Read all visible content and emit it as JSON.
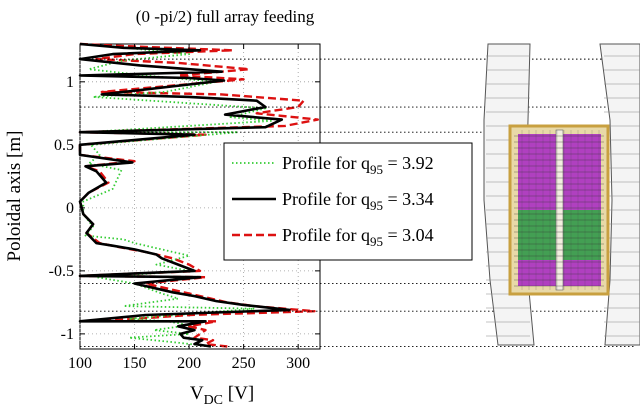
{
  "chart_data": {
    "type": "line",
    "title": "(0 -pi/2) full array feeding",
    "xlabel": "V",
    "xlabel_sub": "DC",
    "xlabel_unit": " [V]",
    "ylabel": "Poloidal axis [m]",
    "xlim": [
      100,
      320
    ],
    "ylim": [
      -1.12,
      1.3
    ],
    "xticks": [
      100,
      150,
      200,
      250,
      300
    ],
    "yticks": [
      -1,
      -0.5,
      0,
      0.5,
      1
    ],
    "grid": true,
    "legend_position": "right",
    "series": [
      {
        "name_prefix": "Profile for q",
        "name_sub": "95",
        "name_suffix": " = 3.92",
        "color": "#33cc33",
        "dash": "dotted",
        "points": [
          [
            130,
            1.28
          ],
          [
            200,
            1.22
          ],
          [
            140,
            1.17
          ],
          [
            108,
            1.1
          ],
          [
            160,
            1.05
          ],
          [
            225,
            1.0
          ],
          [
            178,
            0.92
          ],
          [
            112,
            0.88
          ],
          [
            218,
            0.82
          ],
          [
            270,
            0.79
          ],
          [
            238,
            0.72
          ],
          [
            275,
            0.69
          ],
          [
            105,
            0.6
          ],
          [
            245,
            0.6
          ],
          [
            110,
            0.5
          ],
          [
            118,
            0.42
          ],
          [
            108,
            0.35
          ],
          [
            138,
            0.3
          ],
          [
            130,
            0.15
          ],
          [
            103,
            0.05
          ],
          [
            103,
            -0.05
          ],
          [
            112,
            -0.15
          ],
          [
            105,
            -0.22
          ],
          [
            140,
            -0.25
          ],
          [
            150,
            -0.28
          ],
          [
            175,
            -0.33
          ],
          [
            200,
            -0.38
          ],
          [
            170,
            -0.45
          ],
          [
            200,
            -0.5
          ],
          [
            115,
            -0.55
          ],
          [
            150,
            -0.6
          ],
          [
            175,
            -0.68
          ],
          [
            190,
            -0.72
          ],
          [
            140,
            -0.78
          ],
          [
            260,
            -0.8
          ],
          [
            145,
            -0.88
          ],
          [
            180,
            -0.9
          ],
          [
            200,
            -0.93
          ],
          [
            168,
            -0.97
          ],
          [
            200,
            -1.0
          ],
          [
            145,
            -1.03
          ],
          [
            190,
            -1.07
          ],
          [
            220,
            -1.1
          ]
        ]
      },
      {
        "name_prefix": "Profile for q",
        "name_sub": "95",
        "name_suffix": " = 3.34",
        "color": "#000000",
        "dash": "solid",
        "points": [
          [
            100,
            1.3
          ],
          [
            140,
            1.27
          ],
          [
            210,
            1.25
          ],
          [
            130,
            1.22
          ],
          [
            100,
            1.18
          ],
          [
            155,
            1.13
          ],
          [
            230,
            1.08
          ],
          [
            100,
            1.05
          ],
          [
            200,
            1.03
          ],
          [
            232,
            1.01
          ],
          [
            120,
            0.9
          ],
          [
            200,
            0.88
          ],
          [
            262,
            0.85
          ],
          [
            270,
            0.8
          ],
          [
            233,
            0.74
          ],
          [
            285,
            0.7
          ],
          [
            270,
            0.64
          ],
          [
            100,
            0.6
          ],
          [
            205,
            0.58
          ],
          [
            100,
            0.5
          ],
          [
            100,
            0.42
          ],
          [
            148,
            0.36
          ],
          [
            105,
            0.33
          ],
          [
            115,
            0.29
          ],
          [
            124,
            0.2
          ],
          [
            108,
            0.12
          ],
          [
            100,
            0.05
          ],
          [
            103,
            -0.05
          ],
          [
            112,
            -0.13
          ],
          [
            106,
            -0.2
          ],
          [
            115,
            -0.28
          ],
          [
            130,
            -0.3
          ],
          [
            150,
            -0.33
          ],
          [
            170,
            -0.37
          ],
          [
            175,
            -0.4
          ],
          [
            190,
            -0.45
          ],
          [
            205,
            -0.5
          ],
          [
            100,
            -0.54
          ],
          [
            210,
            -0.55
          ],
          [
            150,
            -0.6
          ],
          [
            185,
            -0.67
          ],
          [
            205,
            -0.7
          ],
          [
            225,
            -0.74
          ],
          [
            250,
            -0.77
          ],
          [
            292,
            -0.81
          ],
          [
            160,
            -0.85
          ],
          [
            100,
            -0.9
          ],
          [
            215,
            -0.9
          ],
          [
            190,
            -0.94
          ],
          [
            205,
            -0.97
          ],
          [
            192,
            -1.0
          ],
          [
            195,
            -1.03
          ],
          [
            212,
            -1.05
          ],
          [
            205,
            -1.08
          ],
          [
            220,
            -1.1
          ]
        ]
      },
      {
        "name_prefix": "Profile for q",
        "name_sub": "95",
        "name_suffix": " = 3.04",
        "color": "#dd1111",
        "dash": "dashed",
        "points": [
          [
            100,
            1.3
          ],
          [
            150,
            1.28
          ],
          [
            240,
            1.25
          ],
          [
            150,
            1.22
          ],
          [
            115,
            1.18
          ],
          [
            190,
            1.15
          ],
          [
            255,
            1.1
          ],
          [
            190,
            1.05
          ],
          [
            250,
            1.02
          ],
          [
            120,
            0.92
          ],
          [
            230,
            0.9
          ],
          [
            305,
            0.85
          ],
          [
            300,
            0.8
          ],
          [
            262,
            0.75
          ],
          [
            318,
            0.7
          ],
          [
            288,
            0.65
          ],
          [
            100,
            0.6
          ],
          [
            215,
            0.58
          ],
          [
            100,
            0.5
          ],
          [
            100,
            0.42
          ],
          [
            150,
            0.37
          ],
          [
            105,
            0.33
          ],
          [
            118,
            0.29
          ],
          [
            126,
            0.2
          ],
          [
            108,
            0.12
          ],
          [
            100,
            0.05
          ],
          [
            103,
            -0.05
          ],
          [
            112,
            -0.13
          ],
          [
            106,
            -0.2
          ],
          [
            118,
            -0.28
          ],
          [
            135,
            -0.31
          ],
          [
            160,
            -0.35
          ],
          [
            185,
            -0.4
          ],
          [
            200,
            -0.45
          ],
          [
            210,
            -0.5
          ],
          [
            100,
            -0.54
          ],
          [
            215,
            -0.55
          ],
          [
            160,
            -0.6
          ],
          [
            195,
            -0.67
          ],
          [
            215,
            -0.71
          ],
          [
            235,
            -0.75
          ],
          [
            260,
            -0.78
          ],
          [
            315,
            -0.82
          ],
          [
            200,
            -0.85
          ],
          [
            118,
            -0.9
          ],
          [
            225,
            -0.9
          ],
          [
            200,
            -0.94
          ],
          [
            215,
            -0.97
          ],
          [
            210,
            -1.0
          ],
          [
            205,
            -1.03
          ],
          [
            222,
            -1.05
          ],
          [
            215,
            -1.08
          ],
          [
            235,
            -1.1
          ]
        ]
      }
    ]
  },
  "reference_lines_y": [
    1.18,
    0.8,
    0.6,
    -0.6,
    -0.82,
    -1.1
  ],
  "legend_line_color": "#333333",
  "antenna_colors": {
    "frame": "#c8a040",
    "purple": "#b040c0",
    "green": "#30b040",
    "wall": "#f4f4f4",
    "gridline": "#8a8a8a"
  }
}
